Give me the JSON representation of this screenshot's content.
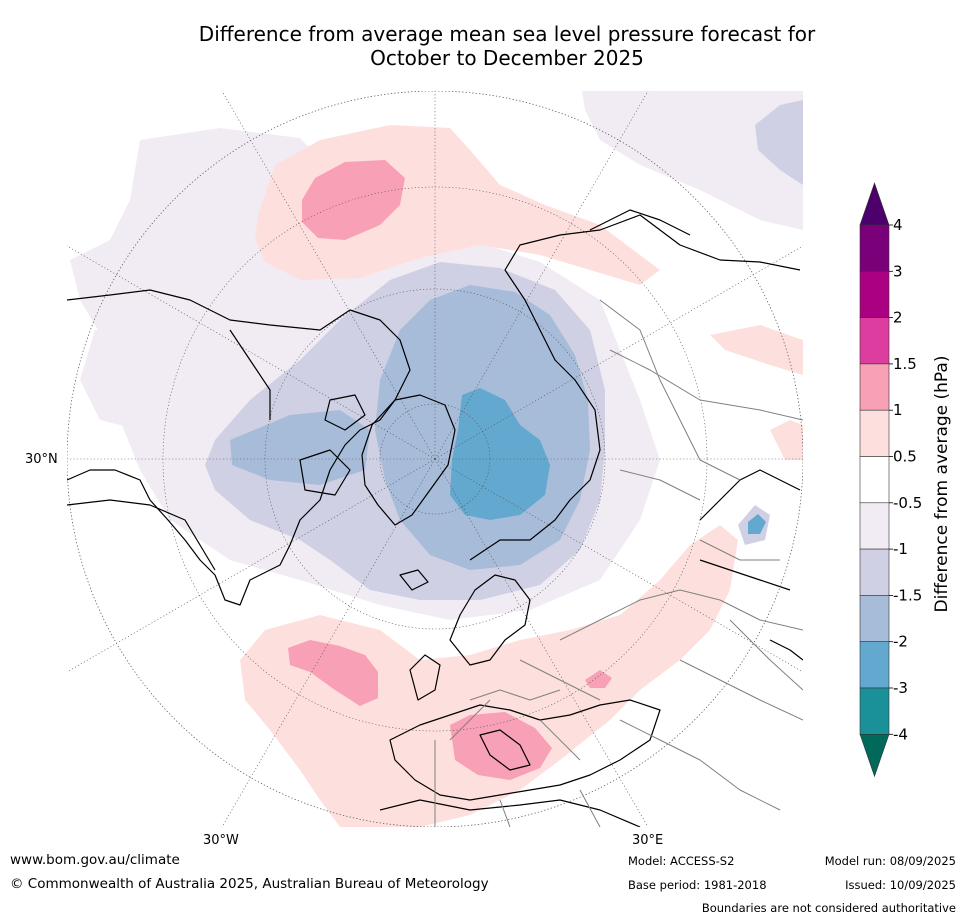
{
  "title": {
    "line1": "Difference from average mean sea level pressure forecast for",
    "line2": "October to December 2025"
  },
  "map_labels": {
    "lat_30n": "30°N",
    "lon_30w": "30°W",
    "lon_30e": "30°E"
  },
  "colorbar": {
    "title": "Difference from average (hPa)",
    "ticks": [
      "4",
      "3",
      "2",
      "1.5",
      "1",
      "0.5",
      "-0.5",
      "-1",
      "-1.5",
      "-2",
      "-3",
      "-4"
    ],
    "bins": [
      {
        "from": "-inf",
        "to": "-4",
        "color": "#00695a"
      },
      {
        "from": "-4",
        "to": "-3",
        "color": "#1a9198"
      },
      {
        "from": "-3",
        "to": "-2",
        "color": "#63a8cf"
      },
      {
        "from": "-2",
        "to": "-1.5",
        "color": "#a7bcd9"
      },
      {
        "from": "-1.5",
        "to": "-1",
        "color": "#cfd0e4"
      },
      {
        "from": "-1",
        "to": "-0.5",
        "color": "#f1ecf3"
      },
      {
        "from": "-0.5",
        "to": "0.5",
        "color": "#ffffff"
      },
      {
        "from": "0.5",
        "to": "1",
        "color": "#fde0de"
      },
      {
        "from": "1",
        "to": "1.5",
        "color": "#f8a0b6"
      },
      {
        "from": "1.5",
        "to": "2",
        "color": "#de3da0"
      },
      {
        "from": "2",
        "to": "3",
        "color": "#ac0082"
      },
      {
        "from": "3",
        "to": "4",
        "color": "#7a0079"
      },
      {
        "from": "4",
        "to": "inf",
        "color": "#4b006b"
      }
    ]
  },
  "footer": {
    "website": "www.bom.gov.au/climate",
    "copyright": "© Commonwealth of Australia 2025, Australian Bureau of Meteorology",
    "model": "Model: ACCESS-S2",
    "base_period": "Base period: 1981-2018",
    "model_run": "Model run: 08/09/2025",
    "issued": "Issued: 10/09/2025",
    "disclaimer": "Boundaries are not considered authoritative"
  }
}
